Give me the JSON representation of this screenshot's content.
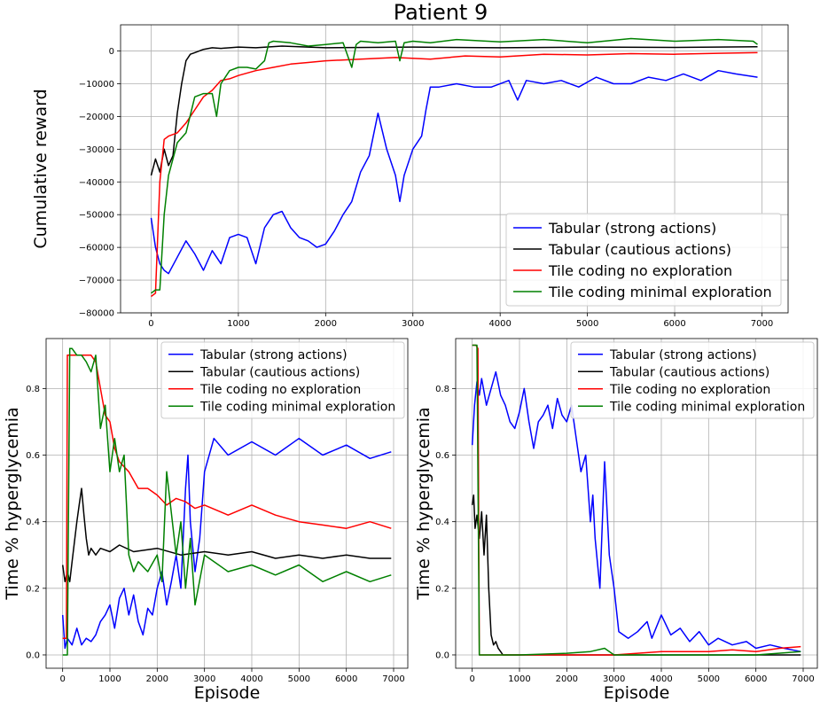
{
  "figure": {
    "title": "Patient 9"
  },
  "series_style": [
    {
      "label": "Tabular (strong actions)",
      "color": "#0000ff"
    },
    {
      "label": "Tabular (cautious actions)",
      "color": "#000000"
    },
    {
      "label": "Tile coding no exploration",
      "color": "#ff0000"
    },
    {
      "label": "Tile coding minimal exploration",
      "color": "#008000"
    }
  ],
  "chart_data": [
    {
      "type": "line",
      "title": "Patient 9",
      "xlabel": "",
      "ylabel": "Cumulative reward",
      "xlim": [
        -350,
        7300
      ],
      "ylim": [
        -80000,
        8000
      ],
      "xticks": [
        0,
        1000,
        2000,
        3000,
        4000,
        5000,
        6000,
        7000
      ],
      "yticks": [
        -80000,
        -70000,
        -60000,
        -50000,
        -40000,
        -30000,
        -20000,
        -10000,
        0
      ],
      "grid": true,
      "legend": "lower-right",
      "series": [
        {
          "name": "Tabular (strong actions)",
          "color": "#0000ff",
          "x": [
            0,
            50,
            100,
            150,
            200,
            300,
            400,
            500,
            600,
            700,
            800,
            900,
            1000,
            1100,
            1200,
            1300,
            1400,
            1500,
            1600,
            1700,
            1800,
            1900,
            2000,
            2100,
            2200,
            2300,
            2400,
            2500,
            2600,
            2700,
            2800,
            2850,
            2900,
            3000,
            3100,
            3150,
            3200,
            3300,
            3500,
            3700,
            3900,
            4100,
            4200,
            4300,
            4500,
            4700,
            4900,
            5100,
            5300,
            5500,
            5700,
            5900,
            6100,
            6300,
            6500,
            6700,
            6950
          ],
          "y": [
            -51000,
            -60000,
            -65000,
            -67000,
            -68000,
            -63000,
            -58000,
            -62000,
            -67000,
            -61000,
            -65000,
            -57000,
            -56000,
            -57000,
            -65000,
            -54000,
            -50000,
            -49000,
            -54000,
            -57000,
            -58000,
            -60000,
            -59000,
            -55000,
            -50000,
            -46000,
            -37000,
            -32000,
            -19000,
            -30000,
            -38000,
            -46000,
            -38000,
            -30000,
            -26000,
            -18000,
            -11000,
            -11000,
            -10000,
            -11000,
            -11000,
            -9000,
            -15000,
            -9000,
            -10000,
            -9000,
            -11000,
            -8000,
            -10000,
            -10000,
            -8000,
            -9000,
            -7000,
            -9000,
            -6000,
            -7000,
            -8000
          ]
        },
        {
          "name": "Tabular (cautious actions)",
          "color": "#000000",
          "x": [
            0,
            50,
            100,
            150,
            200,
            250,
            300,
            350,
            400,
            450,
            500,
            600,
            700,
            800,
            1000,
            1200,
            1500,
            2000,
            3000,
            4000,
            5000,
            6000,
            6950
          ],
          "y": [
            -38000,
            -33000,
            -37000,
            -30000,
            -35000,
            -32000,
            -19000,
            -10000,
            -3000,
            -1000,
            -500,
            500,
            1000,
            800,
            1200,
            1000,
            1500,
            1000,
            1200,
            1000,
            1200,
            1100,
            1300
          ]
        },
        {
          "name": "Tile coding no exploration",
          "color": "#ff0000",
          "x": [
            0,
            50,
            100,
            150,
            200,
            300,
            400,
            500,
            600,
            700,
            800,
            900,
            1000,
            1200,
            1400,
            1600,
            1800,
            2000,
            2400,
            2800,
            3200,
            3600,
            4000,
            4500,
            5000,
            5500,
            6000,
            6500,
            6950
          ],
          "y": [
            -75000,
            -74000,
            -40000,
            -27000,
            -26000,
            -25000,
            -22000,
            -18000,
            -14000,
            -12000,
            -9000,
            -8500,
            -7500,
            -6000,
            -5000,
            -4000,
            -3500,
            -3000,
            -2500,
            -2000,
            -2500,
            -1500,
            -1800,
            -1000,
            -1200,
            -800,
            -1000,
            -700,
            -500
          ]
        },
        {
          "name": "Tile coding minimal exploration",
          "color": "#008000",
          "x": [
            0,
            50,
            100,
            150,
            200,
            300,
            400,
            500,
            600,
            700,
            750,
            800,
            900,
            1000,
            1100,
            1200,
            1300,
            1350,
            1400,
            1600,
            1800,
            2000,
            2200,
            2300,
            2350,
            2400,
            2600,
            2800,
            2850,
            2900,
            3000,
            3200,
            3500,
            4000,
            4500,
            5000,
            5500,
            6000,
            6500,
            6900,
            6950
          ],
          "y": [
            -74000,
            -73000,
            -73000,
            -50000,
            -38000,
            -28000,
            -25000,
            -14000,
            -13000,
            -13000,
            -20000,
            -10000,
            -6000,
            -5000,
            -5000,
            -5500,
            -3000,
            2500,
            3000,
            2500,
            1500,
            2000,
            2500,
            -5000,
            2000,
            3000,
            2500,
            3000,
            -3000,
            2500,
            3000,
            2500,
            3500,
            2800,
            3500,
            2500,
            3800,
            3000,
            3500,
            3000,
            2000
          ]
        }
      ]
    },
    {
      "type": "line",
      "title": "",
      "xlabel": "Episode",
      "ylabel": "Time % hyperglycemia",
      "xlim": [
        -350,
        7300
      ],
      "ylim": [
        -0.04,
        0.95
      ],
      "xticks": [
        0,
        1000,
        2000,
        3000,
        4000,
        5000,
        6000,
        7000
      ],
      "yticks": [
        0.0,
        0.2,
        0.4,
        0.6,
        0.8
      ],
      "grid": true,
      "legend": "upper-right",
      "series": [
        {
          "name": "Tabular (strong actions)",
          "color": "#0000ff",
          "x": [
            0,
            50,
            100,
            200,
            300,
            400,
            500,
            600,
            700,
            800,
            900,
            1000,
            1100,
            1200,
            1300,
            1400,
            1500,
            1600,
            1700,
            1800,
            1900,
            2000,
            2100,
            2200,
            2300,
            2400,
            2500,
            2600,
            2650,
            2700,
            2800,
            2900,
            3000,
            3200,
            3500,
            4000,
            4500,
            5000,
            5500,
            6000,
            6500,
            6950
          ],
          "y": [
            0.12,
            0.02,
            0.05,
            0.03,
            0.08,
            0.03,
            0.05,
            0.04,
            0.06,
            0.1,
            0.12,
            0.15,
            0.08,
            0.17,
            0.2,
            0.12,
            0.18,
            0.1,
            0.06,
            0.14,
            0.12,
            0.2,
            0.25,
            0.15,
            0.22,
            0.3,
            0.2,
            0.5,
            0.6,
            0.4,
            0.25,
            0.35,
            0.55,
            0.65,
            0.6,
            0.64,
            0.6,
            0.65,
            0.6,
            0.63,
            0.59,
            0.61
          ]
        },
        {
          "name": "Tabular (cautious actions)",
          "color": "#000000",
          "x": [
            0,
            50,
            100,
            150,
            200,
            250,
            300,
            350,
            400,
            450,
            500,
            550,
            600,
            700,
            800,
            1000,
            1200,
            1500,
            2000,
            2500,
            3000,
            3500,
            4000,
            4500,
            5000,
            5500,
            6000,
            6500,
            6950
          ],
          "y": [
            0.27,
            0.22,
            0.25,
            0.22,
            0.28,
            0.34,
            0.4,
            0.45,
            0.5,
            0.42,
            0.35,
            0.3,
            0.32,
            0.3,
            0.32,
            0.31,
            0.33,
            0.31,
            0.32,
            0.3,
            0.31,
            0.3,
            0.31,
            0.29,
            0.3,
            0.29,
            0.3,
            0.29,
            0.29
          ]
        },
        {
          "name": "Tile coding no exploration",
          "color": "#ff0000",
          "x": [
            0,
            80,
            100,
            200,
            400,
            500,
            600,
            700,
            800,
            900,
            1000,
            1100,
            1200,
            1400,
            1600,
            1800,
            2000,
            2200,
            2400,
            2600,
            2800,
            3000,
            3500,
            4000,
            4500,
            5000,
            5500,
            6000,
            6500,
            6950
          ],
          "y": [
            0.05,
            0.05,
            0.9,
            0.9,
            0.9,
            0.9,
            0.9,
            0.88,
            0.8,
            0.72,
            0.7,
            0.62,
            0.58,
            0.55,
            0.5,
            0.5,
            0.48,
            0.45,
            0.47,
            0.46,
            0.44,
            0.45,
            0.42,
            0.45,
            0.42,
            0.4,
            0.39,
            0.38,
            0.4,
            0.38
          ]
        },
        {
          "name": "Tile coding minimal exploration",
          "color": "#008000",
          "x": [
            0,
            100,
            150,
            200,
            300,
            400,
            500,
            600,
            700,
            800,
            900,
            1000,
            1100,
            1200,
            1300,
            1350,
            1400,
            1500,
            1600,
            1800,
            2000,
            2100,
            2200,
            2400,
            2500,
            2600,
            2700,
            2800,
            3000,
            3500,
            4000,
            4500,
            5000,
            5500,
            6000,
            6500,
            6950
          ],
          "y": [
            0.0,
            0.0,
            0.92,
            0.92,
            0.9,
            0.9,
            0.88,
            0.85,
            0.9,
            0.68,
            0.75,
            0.55,
            0.65,
            0.55,
            0.6,
            0.45,
            0.3,
            0.25,
            0.28,
            0.25,
            0.3,
            0.22,
            0.55,
            0.3,
            0.4,
            0.2,
            0.35,
            0.15,
            0.3,
            0.25,
            0.27,
            0.24,
            0.27,
            0.22,
            0.25,
            0.22,
            0.24
          ]
        }
      ]
    },
    {
      "type": "line",
      "title": "",
      "xlabel": "Episode",
      "ylabel": "Time % hyperglycemia",
      "xlim": [
        -350,
        7300
      ],
      "ylim": [
        -0.04,
        0.95
      ],
      "xticks": [
        0,
        1000,
        2000,
        3000,
        4000,
        5000,
        6000,
        7000
      ],
      "yticks": [
        0.0,
        0.2,
        0.4,
        0.6,
        0.8
      ],
      "grid": true,
      "legend": "upper-right",
      "series": [
        {
          "name": "Tabular (strong actions)",
          "color": "#0000ff",
          "x": [
            0,
            50,
            100,
            150,
            200,
            300,
            400,
            500,
            600,
            700,
            800,
            900,
            1000,
            1100,
            1200,
            1300,
            1400,
            1500,
            1600,
            1700,
            1800,
            1900,
            2000,
            2100,
            2200,
            2300,
            2400,
            2500,
            2550,
            2600,
            2700,
            2800,
            2900,
            3000,
            3100,
            3300,
            3500,
            3700,
            3800,
            4000,
            4200,
            4400,
            4600,
            4800,
            5000,
            5200,
            5500,
            5800,
            6000,
            6300,
            6600,
            6950
          ],
          "y": [
            0.63,
            0.75,
            0.82,
            0.78,
            0.83,
            0.75,
            0.8,
            0.85,
            0.78,
            0.75,
            0.7,
            0.68,
            0.73,
            0.8,
            0.7,
            0.62,
            0.7,
            0.72,
            0.75,
            0.68,
            0.77,
            0.72,
            0.7,
            0.75,
            0.65,
            0.55,
            0.6,
            0.4,
            0.48,
            0.35,
            0.2,
            0.58,
            0.3,
            0.2,
            0.07,
            0.05,
            0.07,
            0.1,
            0.05,
            0.12,
            0.06,
            0.08,
            0.04,
            0.07,
            0.03,
            0.05,
            0.03,
            0.04,
            0.02,
            0.03,
            0.02,
            0.01
          ]
        },
        {
          "name": "Tabular (cautious actions)",
          "color": "#000000",
          "x": [
            0,
            30,
            60,
            100,
            150,
            200,
            250,
            300,
            350,
            400,
            450,
            500,
            550,
            600,
            650,
            700,
            1000,
            2000,
            3000,
            4000,
            5000,
            6000,
            6950
          ],
          "y": [
            0.45,
            0.48,
            0.38,
            0.42,
            0.35,
            0.43,
            0.3,
            0.42,
            0.2,
            0.06,
            0.03,
            0.04,
            0.02,
            0.01,
            0.0,
            0.0,
            0.0,
            0.0,
            0.0,
            0.0,
            0.0,
            0.0,
            0.0
          ]
        },
        {
          "name": "Tile coding no exploration",
          "color": "#ff0000",
          "x": [
            0,
            80,
            120,
            150,
            200,
            500,
            1000,
            2000,
            3000,
            4000,
            5000,
            5500,
            6000,
            6500,
            6950
          ],
          "y": [
            0.93,
            0.93,
            0.92,
            0.0,
            0.0,
            0.0,
            0.0,
            0.0,
            0.0,
            0.01,
            0.01,
            0.015,
            0.01,
            0.02,
            0.025
          ]
        },
        {
          "name": "Tile coding minimal exploration",
          "color": "#008000",
          "x": [
            0,
            100,
            150,
            200,
            500,
            1000,
            2000,
            2500,
            2800,
            3000,
            4000,
            5000,
            6000,
            6950
          ],
          "y": [
            0.93,
            0.93,
            0.0,
            0.0,
            0.0,
            0.0,
            0.005,
            0.01,
            0.02,
            0.0,
            0.0,
            0.0,
            0.0,
            0.01
          ]
        }
      ]
    }
  ]
}
